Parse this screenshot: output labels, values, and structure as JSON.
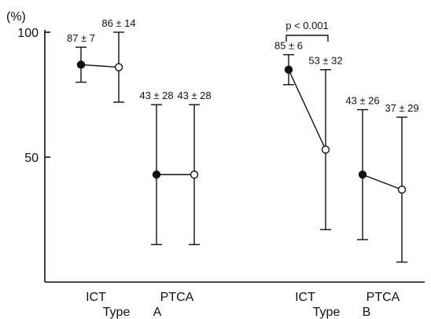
{
  "chart_data": {
    "type": "scatter",
    "ylabel": "(%)",
    "ylim": [
      0,
      100
    ],
    "yticks": [
      100,
      50
    ],
    "grid": false,
    "groups": [
      {
        "type_word": "Type",
        "type_letter": "A",
        "panels": [
          {
            "label": "ICT",
            "points": [
              {
                "value": 87,
                "sd": 7,
                "label": "87 ± 7",
                "fill": "filled"
              },
              {
                "value": 86,
                "sd": 14,
                "label": "86 ± 14",
                "fill": "open"
              }
            ]
          },
          {
            "label": "PTCA",
            "points": [
              {
                "value": 43,
                "sd": 28,
                "label": "43 ± 28",
                "fill": "filled"
              },
              {
                "value": 43,
                "sd": 28,
                "label": "43 ± 28",
                "fill": "open"
              }
            ]
          }
        ]
      },
      {
        "type_word": "Type",
        "type_letter": "B",
        "panels": [
          {
            "label": "ICT",
            "points": [
              {
                "value": 85,
                "sd": 6,
                "label": "85 ± 6",
                "fill": "filled"
              },
              {
                "value": 53,
                "sd": 32,
                "label": "53 ± 32",
                "fill": "open"
              }
            ]
          },
          {
            "label": "PTCA",
            "points": [
              {
                "value": 43,
                "sd": 26,
                "label": "43 ± 26",
                "fill": "filled"
              },
              {
                "value": 37,
                "sd": 29,
                "label": "37 ± 29",
                "fill": "open"
              }
            ]
          }
        ]
      }
    ],
    "annotations": [
      {
        "text": "p < 0.001",
        "group": 1,
        "panel": 0
      }
    ]
  }
}
